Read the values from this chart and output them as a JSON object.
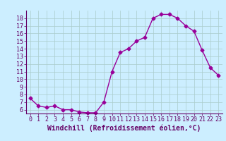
{
  "x": [
    0,
    1,
    2,
    3,
    4,
    5,
    6,
    7,
    8,
    9,
    10,
    11,
    12,
    13,
    14,
    15,
    16,
    17,
    18,
    19,
    20,
    21,
    22,
    23
  ],
  "y": [
    7.5,
    6.5,
    6.3,
    6.5,
    6.0,
    6.0,
    5.7,
    5.6,
    5.6,
    7.0,
    11.0,
    13.5,
    14.0,
    15.0,
    15.5,
    18.0,
    18.5,
    18.5,
    18.0,
    17.0,
    16.3,
    13.8,
    11.5,
    10.5
  ],
  "line_color": "#990099",
  "marker": "D",
  "markersize": 2.5,
  "linewidth": 1.0,
  "xlabel": "Windchill (Refroidissement éolien,°C)",
  "xlabel_fontsize": 7,
  "bg_color": "#cceeff",
  "grid_color": "#aacccc",
  "tick_color": "#660066",
  "spine_color": "#660066",
  "ylim": [
    5.5,
    19.0
  ],
  "xlim": [
    -0.5,
    23.5
  ],
  "yticks": [
    6,
    7,
    8,
    9,
    10,
    11,
    12,
    13,
    14,
    15,
    16,
    17,
    18
  ],
  "xticks": [
    0,
    1,
    2,
    3,
    4,
    5,
    6,
    7,
    8,
    9,
    10,
    11,
    12,
    13,
    14,
    15,
    16,
    17,
    18,
    19,
    20,
    21,
    22,
    23
  ],
  "tick_fontsize": 6,
  "font_family": "monospace"
}
